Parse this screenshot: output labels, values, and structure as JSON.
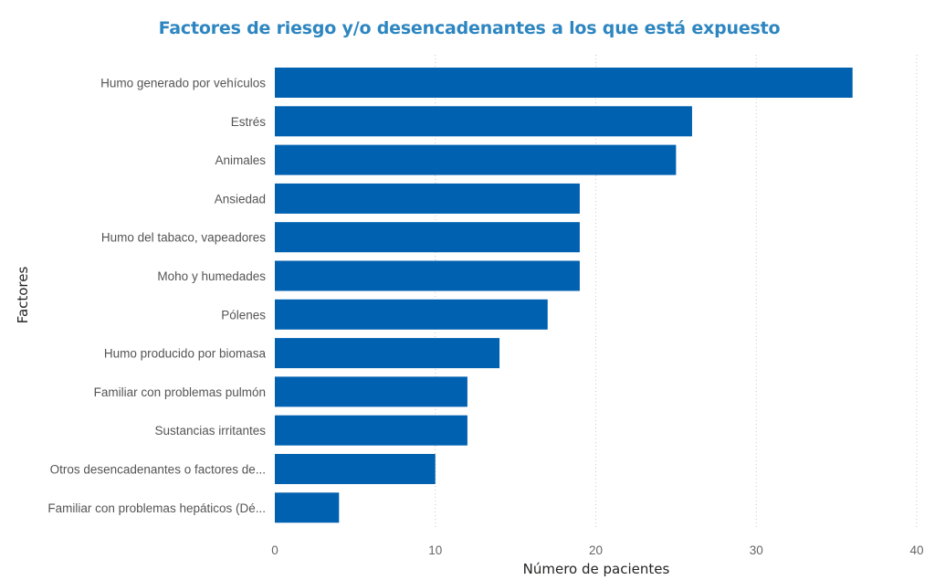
{
  "chart_data": {
    "type": "bar",
    "orientation": "horizontal",
    "title": "Factores de riesgo y/o desencadenantes a los que está expuesto",
    "xlabel": "Número de pacientes",
    "ylabel": "Factores",
    "categories": [
      "Humo generado por vehículos",
      "Estrés",
      "Animales",
      "Ansiedad",
      "Humo del tabaco, vapeadores",
      "Moho y humedades",
      "Pólenes",
      "Humo producido por biomasa",
      "Familiar con problemas pulmón",
      "Sustancias irritantes",
      "Otros desencadenantes o factores de...",
      "Familiar con problemas hepáticos (Dé..."
    ],
    "values": [
      36,
      26,
      25,
      19,
      19,
      19,
      17,
      14,
      12,
      12,
      10,
      4
    ],
    "xlim": [
      0,
      40
    ],
    "xticks": [
      "0",
      "10",
      "20",
      "30",
      "40"
    ],
    "grid": true,
    "legend": "none",
    "bar_color": "#0061b0",
    "title_color": "#2e86c1"
  }
}
